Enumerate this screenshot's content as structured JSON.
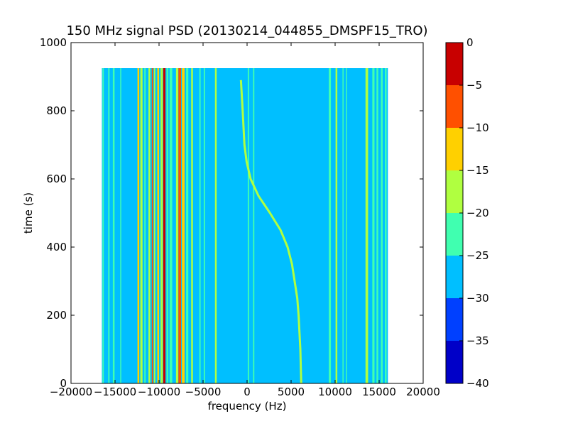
{
  "chart_data": {
    "type": "heatmap",
    "title": "150 MHz signal PSD (20130214_044855_DMSPF15_TRO)",
    "xlabel": "frequency (Hz)",
    "ylabel": "time (s)",
    "xlim": [
      -20000,
      20000
    ],
    "ylim": [
      0,
      1000
    ],
    "x_ticks": [
      -20000,
      -15000,
      -10000,
      -5000,
      0,
      5000,
      10000,
      15000,
      20000
    ],
    "y_ticks": [
      0,
      200,
      400,
      600,
      800,
      1000
    ],
    "data_extent": {
      "x": [
        -16500,
        16000
      ],
      "y": [
        0,
        925
      ]
    },
    "colorbar": {
      "levels": [
        -40,
        -35,
        -30,
        -25,
        -20,
        -15,
        -10,
        -5,
        0
      ],
      "ticks": [
        0,
        -5,
        -10,
        -15,
        -20,
        -25,
        -30,
        -35,
        -40
      ],
      "colors": [
        "#0000c8",
        "#0040ff",
        "#00bfff",
        "#40ffb0",
        "#b0ff40",
        "#ffd000",
        "#ff5000",
        "#c80000"
      ]
    },
    "background_level": -27.5,
    "bands": [
      {
        "x": -16350,
        "w": 150,
        "level": -22.5
      },
      {
        "x": -15700,
        "w": 150,
        "level": -22.5
      },
      {
        "x": -15150,
        "w": 200,
        "level": -22.5
      },
      {
        "x": -14350,
        "w": 120,
        "level": -22.5
      },
      {
        "x": -12350,
        "w": 200,
        "level": -12.5
      },
      {
        "x": -12000,
        "w": 250,
        "level": -17.5
      },
      {
        "x": -11600,
        "w": 150,
        "level": -22.5
      },
      {
        "x": -11100,
        "w": 200,
        "level": -17.5
      },
      {
        "x": -10750,
        "w": 150,
        "level": -7.5
      },
      {
        "x": -10500,
        "w": 150,
        "level": -17.5
      },
      {
        "x": -10100,
        "w": 200,
        "level": -12.5
      },
      {
        "x": -9700,
        "w": 250,
        "level": -17.5
      },
      {
        "x": -9400,
        "w": 250,
        "level": -2.5
      },
      {
        "x": -9050,
        "w": 200,
        "level": -22.5
      },
      {
        "x": -8650,
        "w": 300,
        "level": -22.5
      },
      {
        "x": -7950,
        "w": 250,
        "level": -17.5
      },
      {
        "x": -7650,
        "w": 300,
        "level": -7.5
      },
      {
        "x": -7250,
        "w": 300,
        "level": -12.5
      },
      {
        "x": -6800,
        "w": 250,
        "level": -22.5
      },
      {
        "x": -6250,
        "w": 200,
        "level": -17.5
      },
      {
        "x": -5350,
        "w": 150,
        "level": -22.5
      },
      {
        "x": -4850,
        "w": 150,
        "level": -22.5
      },
      {
        "x": -3550,
        "w": 200,
        "level": -17.5
      },
      {
        "x": 150,
        "w": 150,
        "level": -22.5
      },
      {
        "x": 750,
        "w": 150,
        "level": -22.5
      },
      {
        "x": 9400,
        "w": 250,
        "level": -22.5
      },
      {
        "x": 10150,
        "w": 200,
        "level": -17.5
      },
      {
        "x": 10900,
        "w": 120,
        "level": -22.5
      },
      {
        "x": 11300,
        "w": 120,
        "level": -22.5
      },
      {
        "x": 13600,
        "w": 300,
        "level": -17.5
      },
      {
        "x": 14350,
        "w": 250,
        "level": -22.5
      },
      {
        "x": 14800,
        "w": 200,
        "level": -22.5
      },
      {
        "x": 15300,
        "w": 200,
        "level": -22.5
      },
      {
        "x": 15750,
        "w": 200,
        "level": -22.5
      }
    ],
    "doppler_trace": {
      "level": -17.5,
      "points": [
        {
          "t": 0,
          "f": 6150
        },
        {
          "t": 100,
          "f": 6050
        },
        {
          "t": 200,
          "f": 5850
        },
        {
          "t": 250,
          "f": 5700
        },
        {
          "t": 300,
          "f": 5400
        },
        {
          "t": 350,
          "f": 5100
        },
        {
          "t": 400,
          "f": 4600
        },
        {
          "t": 450,
          "f": 3800
        },
        {
          "t": 500,
          "f": 2600
        },
        {
          "t": 550,
          "f": 1300
        },
        {
          "t": 600,
          "f": 400
        },
        {
          "t": 650,
          "f": -50
        },
        {
          "t": 700,
          "f": -300
        },
        {
          "t": 800,
          "f": -500
        },
        {
          "t": 890,
          "f": -700
        }
      ]
    }
  }
}
